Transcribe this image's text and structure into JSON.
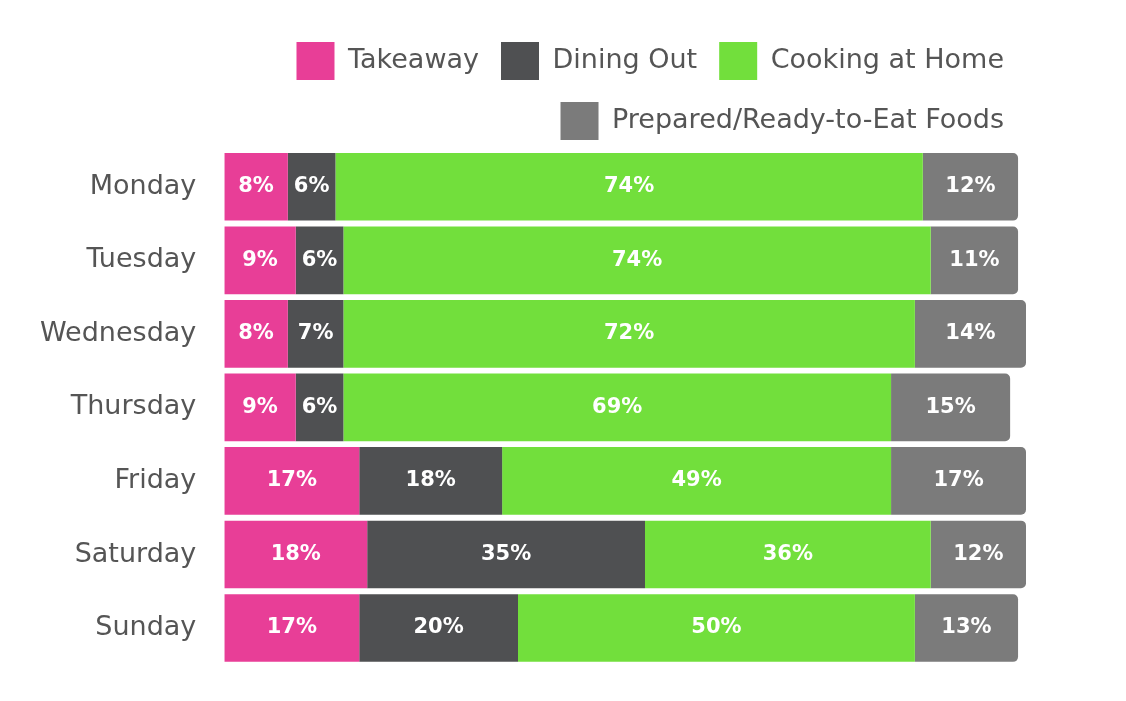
{
  "chart_data": {
    "type": "bar",
    "orientation": "horizontal",
    "stacked": true,
    "legend": "top right",
    "grid": false,
    "tick_labels": "y",
    "xlim": [
      0,
      101
    ],
    "categories": [
      "Monday",
      "Tuesday",
      "Wednesday",
      "Thursday",
      "Friday",
      "Saturday",
      "Sunday"
    ],
    "series": [
      {
        "name": "Takeaway",
        "color": "#e83e97",
        "values": [
          8,
          9,
          8,
          9,
          17,
          18,
          17
        ],
        "value_labels": [
          "8%",
          "9%",
          "8%",
          "9%",
          "17%",
          "18%",
          "17%"
        ]
      },
      {
        "name": "Dining Out",
        "color": "#4f5052",
        "values": [
          6,
          6,
          7,
          6,
          18,
          35,
          20
        ],
        "value_labels": [
          "6%",
          "6%",
          "7%",
          "6%",
          "18%",
          "35%",
          "20%"
        ]
      },
      {
        "name": "Cooking at Home",
        "color": "#72df3c",
        "values": [
          74,
          74,
          72,
          69,
          49,
          36,
          50
        ],
        "value_labels": [
          "74%",
          "74%",
          "72%",
          "69%",
          "49%",
          "36%",
          "50%"
        ]
      },
      {
        "name": "Prepared/Ready-to-Eat Foods",
        "color": "#7b7b7b",
        "values": [
          12,
          11,
          14,
          15,
          17,
          12,
          13
        ],
        "value_labels": [
          "12%",
          "11%",
          "14%",
          "15%",
          "17%",
          "12%",
          "13%"
        ]
      }
    ]
  }
}
